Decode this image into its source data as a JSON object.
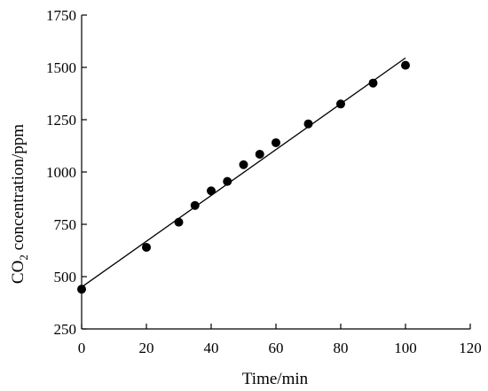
{
  "chart_data": {
    "type": "scatter",
    "title": "",
    "xlabel": "Time/min",
    "ylabel_main": "CO",
    "ylabel_sub": "2",
    "ylabel_rest": " concentration/ppm",
    "xlim": [
      0,
      120
    ],
    "ylim": [
      250,
      1750
    ],
    "xticks": [
      0,
      20,
      40,
      60,
      80,
      100,
      120
    ],
    "yticks": [
      250,
      500,
      750,
      1000,
      1250,
      1500,
      1750
    ],
    "grid": false,
    "legend": "none",
    "series": [
      {
        "marker": "filled-circle",
        "x": [
          0,
          20,
          30,
          35,
          40,
          45,
          50,
          55,
          60,
          70,
          80,
          90,
          100
        ],
        "y": [
          440,
          640,
          760,
          840,
          910,
          955,
          1035,
          1085,
          1140,
          1230,
          1325,
          1425,
          1510
        ]
      }
    ],
    "fit_line": {
      "x": [
        0,
        100
      ],
      "y": [
        450,
        1545
      ]
    }
  }
}
